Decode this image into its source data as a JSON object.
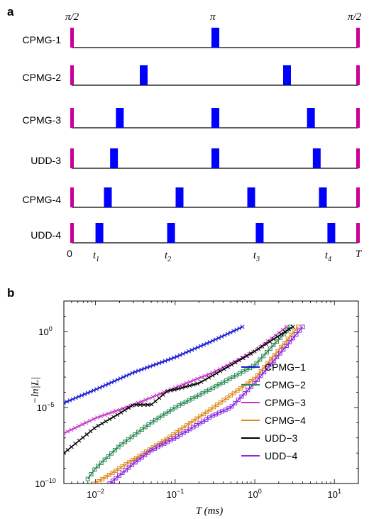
{
  "colors": {
    "pi2_pulse": "#cc0099",
    "pi_pulse": "#0000ff"
  },
  "panel_a": {
    "label": "a",
    "top_labels": {
      "left": "π/2",
      "middle": "π",
      "right": "π/2"
    },
    "sequences": [
      {
        "name": "CPMG-1",
        "pulses": [
          0.5
        ]
      },
      {
        "name": "CPMG-2",
        "pulses": [
          0.25,
          0.75
        ]
      },
      {
        "name": "CPMG-3",
        "pulses": [
          0.1667,
          0.5,
          0.8333
        ]
      },
      {
        "name": "UDD-3",
        "pulses": [
          0.1464,
          0.5,
          0.8536
        ]
      },
      {
        "name": "CPMG-4",
        "pulses": [
          0.125,
          0.375,
          0.625,
          0.875
        ]
      },
      {
        "name": "UDD-4",
        "pulses": [
          0.0955,
          0.3455,
          0.6545,
          0.9045
        ]
      }
    ],
    "time_axis": {
      "start": "0",
      "end": "T",
      "marks": [
        {
          "t": "t",
          "sub": "1"
        },
        {
          "t": "t",
          "sub": "2"
        },
        {
          "t": "t",
          "sub": "3"
        },
        {
          "t": "t",
          "sub": "4"
        }
      ]
    }
  },
  "panel_b": {
    "label": "b",
    "legend_placement": "lower-right",
    "chart_data": {
      "type": "line",
      "xlabel": "T (ms)",
      "ylabel": "−ln|L|",
      "xscale": "log",
      "yscale": "log",
      "xlim": [
        0.004,
        20
      ],
      "ylim": [
        1e-10,
        100
      ],
      "xticks": [
        {
          "base": "10",
          "exp": "−2",
          "value": 0.01
        },
        {
          "base": "10",
          "exp": "−1",
          "value": 0.1
        },
        {
          "base": "10",
          "exp": "0",
          "value": 1
        },
        {
          "base": "10",
          "exp": "1",
          "value": 10
        }
      ],
      "yticks": [
        {
          "base": "10",
          "exp": "0",
          "value": 1
        },
        {
          "base": "10",
          "exp": "−5",
          "value": 1e-05
        },
        {
          "base": "10",
          "exp": "−10",
          "value": 1e-10
        }
      ],
      "series": [
        {
          "name": "CPMG−1",
          "color": "#1c1cd6",
          "marker": "x",
          "x": [
            0.004,
            0.01,
            0.03,
            0.1,
            0.3,
            0.7
          ],
          "y": [
            2e-05,
            0.00015,
            0.002,
            0.02,
            0.25,
            2
          ]
        },
        {
          "name": "CPMG−2",
          "color": "#2e8b57",
          "marker": "square",
          "x": [
            0.008,
            0.01,
            0.02,
            0.05,
            0.1,
            0.3,
            1,
            2.8
          ],
          "y": [
            2e-10,
            1e-09,
            3e-08,
            1e-06,
            1e-05,
            0.0002,
            0.006,
            2
          ]
        },
        {
          "name": "CPMG−3",
          "color": "#c832c8",
          "marker": "x",
          "x": [
            0.004,
            0.01,
            0.03,
            0.1,
            0.3,
            1,
            2.5
          ],
          "y": [
            2e-07,
            2e-06,
            1.5e-05,
            0.0002,
            0.002,
            0.05,
            2
          ]
        },
        {
          "name": "CPMG−4",
          "color": "#e08a1e",
          "marker": "square",
          "x": [
            0.01,
            0.02,
            0.05,
            0.1,
            0.3,
            1,
            3.5
          ],
          "y": [
            1e-10,
            1e-09,
            2e-08,
            2e-07,
            1e-05,
            0.0008,
            2
          ]
        },
        {
          "name": "UDD−3",
          "color": "#000000",
          "marker": "x",
          "x": [
            0.004,
            0.01,
            0.02,
            0.03,
            0.05,
            0.08,
            0.1,
            0.2,
            0.5,
            1,
            3
          ],
          "y": [
            1e-08,
            5e-07,
            4e-06,
            1.5e-05,
            1.5e-05,
            0.00012,
            0.00015,
            0.0004,
            0.006,
            0.05,
            2
          ]
        },
        {
          "name": "UDD−4",
          "color": "#8a2be2",
          "marker": "square",
          "x": [
            0.015,
            0.03,
            0.05,
            0.1,
            0.3,
            0.5,
            1,
            4
          ],
          "y": [
            1e-10,
            2e-09,
            1.5e-08,
            1e-07,
            3e-06,
            1e-05,
            0.0004,
            2
          ]
        }
      ]
    }
  }
}
